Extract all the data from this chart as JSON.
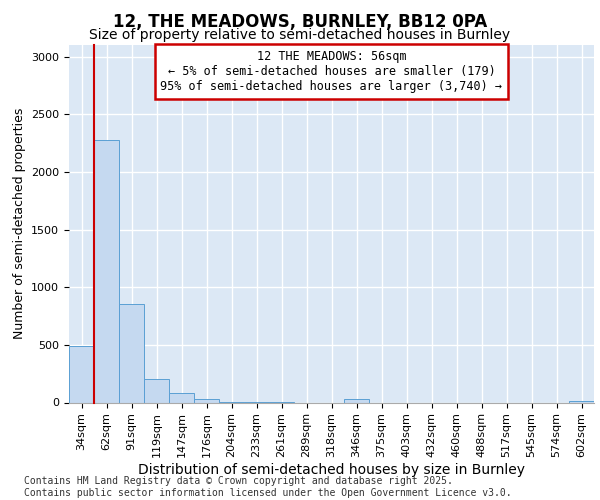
{
  "title": "12, THE MEADOWS, BURNLEY, BB12 0PA",
  "subtitle": "Size of property relative to semi-detached houses in Burnley",
  "xlabel": "Distribution of semi-detached houses by size in Burnley",
  "ylabel": "Number of semi-detached properties",
  "categories": [
    "34sqm",
    "62sqm",
    "91sqm",
    "119sqm",
    "147sqm",
    "176sqm",
    "204sqm",
    "233sqm",
    "261sqm",
    "289sqm",
    "318sqm",
    "346sqm",
    "375sqm",
    "403sqm",
    "432sqm",
    "460sqm",
    "488sqm",
    "517sqm",
    "545sqm",
    "574sqm",
    "602sqm"
  ],
  "values": [
    490,
    2280,
    850,
    200,
    85,
    30,
    8,
    3,
    2,
    0,
    0,
    30,
    0,
    0,
    0,
    0,
    0,
    0,
    0,
    0,
    15
  ],
  "bar_color": "#c5d9f0",
  "bar_edge_color": "#5a9fd4",
  "annotation_box_text": "12 THE MEADOWS: 56sqm\n← 5% of semi-detached houses are smaller (179)\n95% of semi-detached houses are larger (3,740) →",
  "annotation_box_color": "#ffffff",
  "annotation_box_edge_color": "#cc0000",
  "red_line_x": 0.5,
  "footer_line1": "Contains HM Land Registry data © Crown copyright and database right 2025.",
  "footer_line2": "Contains public sector information licensed under the Open Government Licence v3.0.",
  "ylim": [
    0,
    3100
  ],
  "yticks": [
    0,
    500,
    1000,
    1500,
    2000,
    2500,
    3000
  ],
  "background_color": "#dce8f5",
  "grid_color": "#ffffff",
  "title_fontsize": 12,
  "subtitle_fontsize": 10,
  "xlabel_fontsize": 10,
  "ylabel_fontsize": 9,
  "tick_fontsize": 8,
  "footer_fontsize": 7,
  "annotation_fontsize": 8.5
}
